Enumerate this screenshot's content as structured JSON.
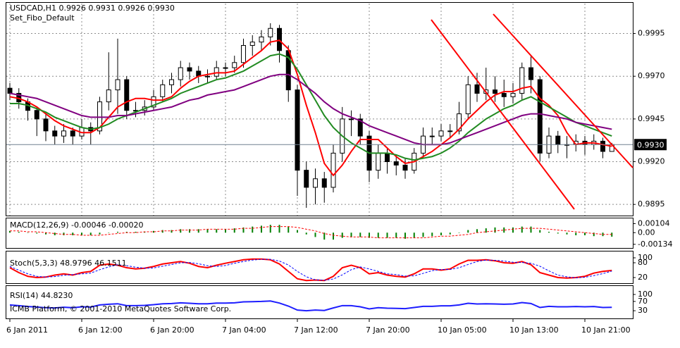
{
  "chart_data": [
    {
      "type": "candlestick",
      "title": "USDCAD,H1  0.9926 0.9931 0.9926 0.9930",
      "subtitle": "Set_Fibo_Default",
      "grid": true,
      "categories": [
        "6 Jan 2011",
        null,
        null,
        null,
        null,
        null,
        null,
        null,
        "6 Jan 12:00",
        null,
        null,
        null,
        null,
        null,
        null,
        null,
        "6 Jan 20:00",
        null,
        null,
        null,
        null,
        null,
        null,
        null,
        "7 Jan 04:00",
        null,
        null,
        null,
        null,
        null,
        null,
        null,
        "7 Jan 12:00",
        null,
        null,
        null,
        null,
        null,
        null,
        null,
        "7 Jan 20:00",
        null,
        null,
        null,
        null,
        null,
        null,
        null,
        "10 Jan 05:00",
        null,
        null,
        null,
        null,
        null,
        null,
        null,
        "10 Jan 13:00",
        null,
        null,
        null,
        null,
        null,
        null,
        null,
        "10 Jan 21:00",
        null,
        null,
        null
      ],
      "ylim": [
        0.98893,
        1.00113
      ],
      "yticks": [
        0.9895,
        {
          "value": 0.992,
          "label": "0.9920"
        },
        0.9945,
        {
          "value": 0.997,
          "label": "0.9970"
        },
        0.9995
      ],
      "price_line": {
        "value": 0.993,
        "label": "0.9930"
      },
      "up_color": "#ffffff",
      "down_color": "#000000",
      "ohlc": [
        [
          0.9963,
          0.9966,
          0.9956,
          0.996
        ],
        [
          0.996,
          0.9963,
          0.9951,
          0.9955
        ],
        [
          0.9955,
          0.9957,
          0.9944,
          0.995
        ],
        [
          0.995,
          0.9952,
          0.9935,
          0.9945
        ],
        [
          0.9945,
          0.9948,
          0.9932,
          0.9938
        ],
        [
          0.9938,
          0.9941,
          0.993,
          0.9935
        ],
        [
          0.9935,
          0.9942,
          0.9931,
          0.9938
        ],
        [
          0.9938,
          0.994,
          0.993,
          0.9935
        ],
        [
          0.9935,
          0.9945,
          0.9933,
          0.994
        ],
        [
          0.994,
          0.9943,
          0.993,
          0.9938
        ],
        [
          0.9938,
          0.9958,
          0.9936,
          0.9955
        ],
        [
          0.9955,
          0.9984,
          0.995,
          0.9962
        ],
        [
          0.9962,
          0.9992,
          0.9948,
          0.9968
        ],
        [
          0.9968,
          0.997,
          0.9945,
          0.995
        ],
        [
          0.995,
          0.9955,
          0.9946,
          0.995
        ],
        [
          0.995,
          0.9956,
          0.9947,
          0.9952
        ],
        [
          0.9952,
          0.9962,
          0.995,
          0.9958
        ],
        [
          0.9958,
          0.9968,
          0.9955,
          0.9965
        ],
        [
          0.9965,
          0.9972,
          0.996,
          0.9968
        ],
        [
          0.9968,
          0.9979,
          0.9964,
          0.9975
        ],
        [
          0.9975,
          0.9978,
          0.9968,
          0.9973
        ],
        [
          0.9973,
          0.9976,
          0.9966,
          0.997
        ],
        [
          0.997,
          0.9974,
          0.9966,
          0.997
        ],
        [
          0.997,
          0.9979,
          0.9968,
          0.9975
        ],
        [
          0.9975,
          0.9978,
          0.997,
          0.9975
        ],
        [
          0.9975,
          0.9982,
          0.9972,
          0.9978
        ],
        [
          0.9978,
          0.9992,
          0.9975,
          0.9988
        ],
        [
          0.9988,
          0.9994,
          0.9982,
          0.999
        ],
        [
          0.999,
          0.9997,
          0.9985,
          0.9993
        ],
        [
          0.9993,
          1.0001,
          0.9988,
          0.9998
        ],
        [
          0.9998,
          1.0,
          0.9978,
          0.9985
        ],
        [
          0.9985,
          0.9988,
          0.9955,
          0.9962
        ],
        [
          0.9962,
          0.9965,
          0.99,
          0.9915
        ],
        [
          0.9915,
          0.992,
          0.9893,
          0.9905
        ],
        [
          0.9905,
          0.9916,
          0.9895,
          0.991
        ],
        [
          0.991,
          0.9914,
          0.9896,
          0.9905
        ],
        [
          0.9905,
          0.993,
          0.9902,
          0.9925
        ],
        [
          0.9925,
          0.9952,
          0.992,
          0.9945
        ],
        [
          0.9945,
          0.995,
          0.9935,
          0.9945
        ],
        [
          0.9945,
          0.9948,
          0.993,
          0.9935
        ],
        [
          0.9935,
          0.9938,
          0.9908,
          0.9915
        ],
        [
          0.9915,
          0.993,
          0.991,
          0.9925
        ],
        [
          0.9925,
          0.9928,
          0.9913,
          0.992
        ],
        [
          0.992,
          0.9924,
          0.9912,
          0.9918
        ],
        [
          0.9918,
          0.9922,
          0.991,
          0.9915
        ],
        [
          0.9915,
          0.9928,
          0.9913,
          0.9925
        ],
        [
          0.9925,
          0.994,
          0.9922,
          0.9935
        ],
        [
          0.9935,
          0.994,
          0.993,
          0.9935
        ],
        [
          0.9935,
          0.9942,
          0.9932,
          0.9938
        ],
        [
          0.9938,
          0.9942,
          0.9934,
          0.9938
        ],
        [
          0.9938,
          0.9955,
          0.9936,
          0.9948
        ],
        [
          0.9948,
          0.997,
          0.9945,
          0.9965
        ],
        [
          0.9965,
          0.9972,
          0.9955,
          0.996
        ],
        [
          0.996,
          0.9975,
          0.9956,
          0.9962
        ],
        [
          0.9962,
          0.997,
          0.9955,
          0.996
        ],
        [
          0.996,
          0.9968,
          0.9952,
          0.9958
        ],
        [
          0.9958,
          0.9966,
          0.9954,
          0.996
        ],
        [
          0.996,
          0.9978,
          0.9956,
          0.9975
        ],
        [
          0.9975,
          0.9982,
          0.996,
          0.9968
        ],
        [
          0.9968,
          0.997,
          0.992,
          0.9925
        ],
        [
          0.9925,
          0.994,
          0.9922,
          0.9935
        ],
        [
          0.9935,
          0.9938,
          0.9925,
          0.993
        ],
        [
          0.993,
          0.9935,
          0.9922,
          0.993
        ],
        [
          0.993,
          0.9936,
          0.9926,
          0.9932
        ],
        [
          0.9932,
          0.9935,
          0.9924,
          0.993
        ],
        [
          0.993,
          0.9936,
          0.9927,
          0.9932
        ],
        [
          0.9932,
          0.9934,
          0.9922,
          0.9926
        ],
        [
          0.9926,
          0.9931,
          0.9926,
          0.993
        ]
      ],
      "series": [
        {
          "color": "#ff0000",
          "values": [
            0.9958,
            0.9957,
            0.9955,
            0.9952,
            0.9948,
            0.9944,
            0.9941,
            0.9939,
            0.9937,
            0.9937,
            0.994,
            0.9946,
            0.9952,
            0.9955,
            0.9957,
            0.9957,
            0.9956,
            0.9956,
            0.9958,
            0.9963,
            0.9967,
            0.997,
            0.9971,
            0.9972,
            0.9972,
            0.9973,
            0.9977,
            0.9981,
            0.9985,
            0.999,
            0.9991,
            0.9986,
            0.9971,
            0.9953,
            0.9937,
            0.9919,
            0.9912,
            0.9918,
            0.9926,
            0.9933,
            0.9933,
            0.9933,
            0.9928,
            0.9923,
            0.9919,
            0.992,
            0.9923,
            0.9926,
            0.993,
            0.9934,
            0.9939,
            0.9945,
            0.995,
            0.9955,
            0.9959,
            0.9961,
            0.9961,
            0.9963,
            0.9964,
            0.9957,
            0.9953,
            0.9947,
            0.9937,
            0.993,
            0.9931,
            0.9931,
            0.993,
            0.9929
          ]
        },
        {
          "color": "#228b22",
          "values": [
            0.9954,
            0.9954,
            0.9953,
            0.9951,
            0.9949,
            0.9946,
            0.9944,
            0.9942,
            0.994,
            0.9939,
            0.994,
            0.9942,
            0.9945,
            0.9947,
            0.9949,
            0.9951,
            0.9953,
            0.9955,
            0.9957,
            0.996,
            0.9962,
            0.9964,
            0.9966,
            0.9968,
            0.9969,
            0.9971,
            0.9973,
            0.9976,
            0.9979,
            0.9982,
            0.9983,
            0.9981,
            0.9974,
            0.9965,
            0.9956,
            0.9947,
            0.994,
            0.9935,
            0.9931,
            0.9928,
            0.9925,
            0.9925,
            0.9925,
            0.9924,
            0.9922,
            0.9921,
            0.9922,
            0.9923,
            0.9925,
            0.9928,
            0.9932,
            0.9937,
            0.9941,
            0.9945,
            0.9948,
            0.9951,
            0.9953,
            0.9956,
            0.9958,
            0.9955,
            0.9952,
            0.9949,
            0.9946,
            0.9943,
            0.9941,
            0.9939,
            0.9937,
            0.9935
          ]
        },
        {
          "color": "#800080",
          "values": [
            0.996,
            0.9959,
            0.9958,
            0.9957,
            0.9955,
            0.9953,
            0.9951,
            0.9949,
            0.9947,
            0.9946,
            0.9946,
            0.9946,
            0.9947,
            0.9947,
            0.9948,
            0.9949,
            0.995,
            0.9951,
            0.9952,
            0.9954,
            0.9956,
            0.9957,
            0.9959,
            0.996,
            0.9961,
            0.9962,
            0.9964,
            0.9966,
            0.9968,
            0.997,
            0.9971,
            0.9971,
            0.9968,
            0.9964,
            0.996,
            0.9955,
            0.9951,
            0.9948,
            0.9946,
            0.9944,
            0.9941,
            0.9939,
            0.9937,
            0.9935,
            0.9933,
            0.9931,
            0.993,
            0.993,
            0.993,
            0.9931,
            0.9933,
            0.9935,
            0.9937,
            0.9939,
            0.9941,
            0.9943,
            0.9945,
            0.9947,
            0.9948,
            0.9948,
            0.9947,
            0.9946,
            0.9945,
            0.9943,
            0.9942,
            0.9941,
            0.994,
            0.9939
          ]
        }
      ]
    },
    {
      "type": "macd",
      "title": "MACD(12,26,9) -0.00046 -0.00020",
      "ylim": [
        -0.0016,
        0.0014
      ],
      "yticks": [
        0.00104,
        {
          "value": 0,
          "label": "0.00"
        },
        -0.00134
      ],
      "series": [
        {
          "color": "#008000",
          "values": [
            0.0002,
            0.0001,
            0,
            -0.0001,
            -0.0002,
            -0.0003,
            -0.0003,
            -0.0003,
            -0.0003,
            -0.0003,
            -0.0002,
            0,
            0.0001,
            0.0001,
            0.0001,
            0.0001,
            0.0002,
            0.0003,
            0.0003,
            0.0004,
            0.0004,
            0.0004,
            0.0004,
            0.0004,
            0.0004,
            0.0005,
            0.0006,
            0.0007,
            0.0008,
            0.0009,
            0.0009,
            0.0007,
            0.0003,
            -0.0002,
            -0.0005,
            -0.0008,
            -0.0008,
            -0.0006,
            -0.0005,
            -0.0005,
            -0.0006,
            -0.0006,
            -0.0006,
            -0.0006,
            -0.0007,
            -0.0006,
            -0.0005,
            -0.0004,
            -0.0003,
            -0.0002,
            0,
            0.0003,
            0.0004,
            0.0005,
            0.0006,
            0.0006,
            0.0006,
            0.0007,
            0.0007,
            0.0003,
            0.0001,
            -0.0001,
            -0.0002,
            -0.0003,
            -0.0003,
            -0.0004,
            -0.0004,
            -0.00046
          ]
        },
        {
          "color": "#ff0000",
          "dashed": true,
          "values": [
            0.0002,
            0.0002,
            0.0001,
            0.0001,
            0,
            -0.0001,
            -0.0002,
            -0.0002,
            -0.0003,
            -0.0003,
            -0.0003,
            -0.0002,
            -0.0001,
            0,
            0,
            0.0001,
            0.0001,
            0.0002,
            0.0002,
            0.0003,
            0.0003,
            0.0003,
            0.0004,
            0.0004,
            0.0004,
            0.0004,
            0.0005,
            0.0005,
            0.0006,
            0.0007,
            0.0007,
            0.0007,
            0.0006,
            0.0004,
            0.0002,
            -0.0001,
            -0.0003,
            -0.0004,
            -0.0005,
            -0.0005,
            -0.0005,
            -0.0006,
            -0.0006,
            -0.0006,
            -0.0006,
            -0.0006,
            -0.0006,
            -0.0005,
            -0.0004,
            -0.0004,
            -0.0003,
            -0.0002,
            0,
            0.0001,
            0.0002,
            0.0003,
            0.0004,
            0.0005,
            0.0005,
            0.0005,
            0.0004,
            0.0003,
            0.0002,
            0.0001,
            0,
            -0.0001,
            -0.0002,
            -0.0002
          ]
        }
      ]
    },
    {
      "type": "line",
      "title": "Stoch(5,3,3) 48.9796 46.1511",
      "ylim": [
        0,
        100
      ],
      "yticks": [
        100,
        80,
        20
      ],
      "series": [
        {
          "color": "#ff0000",
          "values": [
            60,
            40,
            25,
            20,
            22,
            30,
            35,
            30,
            40,
            45,
            70,
            75,
            70,
            60,
            55,
            58,
            65,
            75,
            80,
            85,
            78,
            65,
            60,
            70,
            78,
            85,
            92,
            95,
            95,
            92,
            75,
            45,
            15,
            8,
            10,
            8,
            25,
            60,
            70,
            60,
            35,
            40,
            30,
            25,
            22,
            35,
            55,
            55,
            50,
            55,
            75,
            90,
            90,
            92,
            88,
            80,
            78,
            85,
            72,
            40,
            30,
            20,
            18,
            20,
            25,
            38,
            45,
            48.9796
          ]
        },
        {
          "color": "#0000ff",
          "dashed": true,
          "values": [
            65,
            50,
            35,
            25,
            22,
            24,
            29,
            32,
            35,
            38,
            52,
            63,
            72,
            68,
            62,
            58,
            59,
            66,
            73,
            80,
            81,
            76,
            68,
            65,
            69,
            78,
            85,
            91,
            94,
            94,
            87,
            71,
            45,
            23,
            11,
            9,
            14,
            31,
            52,
            63,
            55,
            45,
            35,
            32,
            26,
            27,
            37,
            48,
            53,
            53,
            60,
            73,
            85,
            91,
            90,
            87,
            82,
            81,
            78,
            66,
            47,
            30,
            23,
            19,
            21,
            28,
            36,
            46.1511
          ]
        }
      ]
    },
    {
      "type": "line",
      "title": "RSI(14) 44.8230",
      "ylim": [
        0,
        100
      ],
      "yticks": [
        100,
        70,
        30
      ],
      "series": [
        {
          "color": "#1e1eff",
          "values": [
            55,
            52,
            48,
            46,
            43,
            42,
            45,
            43,
            47,
            46,
            55,
            58,
            60,
            52,
            52,
            53,
            56,
            60,
            61,
            64,
            62,
            60,
            60,
            63,
            63,
            64,
            68,
            69,
            70,
            72,
            63,
            50,
            33,
            30,
            33,
            31,
            42,
            52,
            52,
            47,
            38,
            43,
            41,
            40,
            39,
            44,
            49,
            49,
            51,
            51,
            55,
            62,
            59,
            60,
            59,
            58,
            59,
            65,
            61,
            44,
            49,
            47,
            47,
            48,
            47,
            48,
            44,
            44.823
          ]
        }
      ]
    }
  ],
  "copyright": "ICMB Platform, © 2001-2010 MetaQuotes Software Corp."
}
